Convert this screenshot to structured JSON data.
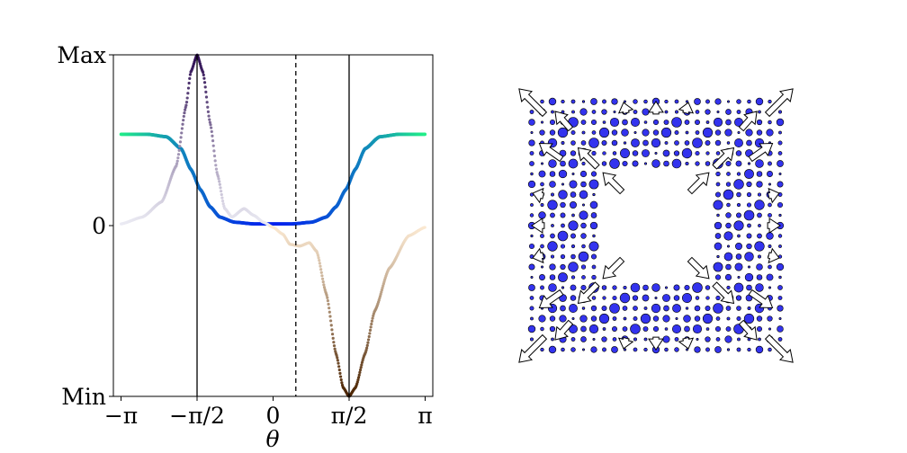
{
  "chart_data": [
    {
      "type": "line",
      "title": "",
      "xlabel": "θ",
      "ylabel": "",
      "xlim": [
        -3.3,
        3.3
      ],
      "ylim": [
        "Min",
        "Max"
      ],
      "x_ticks": [
        {
          "value": -3.1416,
          "label": "−π"
        },
        {
          "value": -1.5708,
          "label": "−π/2"
        },
        {
          "value": 0,
          "label": "0"
        },
        {
          "value": 1.5708,
          "label": "π/2"
        },
        {
          "value": 3.1416,
          "label": "π"
        }
      ],
      "y_ticks": [
        "Max",
        "0",
        "Min"
      ],
      "grid": false,
      "vertical_lines": [
        {
          "x": -1.5708,
          "style": "solid"
        },
        {
          "x": 0.47,
          "style": "dashed"
        },
        {
          "x": 1.5708,
          "style": "solid"
        }
      ],
      "series": [
        {
          "color": "#00e676 → #0033ff",
          "x": [
            -3.14,
            -2.6,
            -2.2,
            -1.9,
            -1.7,
            -1.5,
            -1.3,
            -1.1,
            -0.8,
            -0.4,
            0,
            0.4,
            0.8,
            1.1,
            1.3,
            1.5,
            1.7,
            1.9,
            2.2,
            2.6,
            3.14
          ],
          "y": [
            0.535,
            0.535,
            0.52,
            0.45,
            0.33,
            0.21,
            0.11,
            0.05,
            0.02,
            0.01,
            0.01,
            0.01,
            0.02,
            0.05,
            0.11,
            0.21,
            0.33,
            0.45,
            0.52,
            0.535,
            0.535
          ]
        },
        {
          "color": "#2a0a4a → #e8e8f0 / #f7e0c0 → #4a2a00",
          "x": [
            -3.14,
            -2.7,
            -2.3,
            -2.0,
            -1.8,
            -1.7,
            -1.57,
            -1.45,
            -1.3,
            -1.15,
            -1.0,
            -0.85,
            -0.6,
            -0.4,
            -0.2,
            0,
            0.2,
            0.35,
            0.55,
            0.75,
            0.9,
            1.1,
            1.3,
            1.45,
            1.57,
            1.7,
            1.9,
            2.1,
            2.4,
            2.8,
            3.14
          ],
          "y": [
            0.01,
            0.05,
            0.14,
            0.35,
            0.7,
            0.9,
            1.0,
            0.9,
            0.6,
            0.3,
            0.1,
            0.05,
            0.1,
            0.06,
            0.02,
            -0.01,
            -0.05,
            -0.11,
            -0.12,
            -0.1,
            -0.15,
            -0.4,
            -0.75,
            -0.95,
            -1.0,
            -0.95,
            -0.75,
            -0.5,
            -0.25,
            -0.06,
            -0.01
          ]
        }
      ]
    },
    {
      "type": "scatter",
      "title": "",
      "xlabel": "",
      "ylabel": "",
      "grid": false,
      "description_marks": "blue site dots on a square lattice with a central hole, plus white arrow vectors pointing radially outward at corners",
      "colors": {
        "dots": "#3333ee",
        "arrows_fill": "#ffffff",
        "arrows_stroke": "#000000"
      }
    }
  ]
}
